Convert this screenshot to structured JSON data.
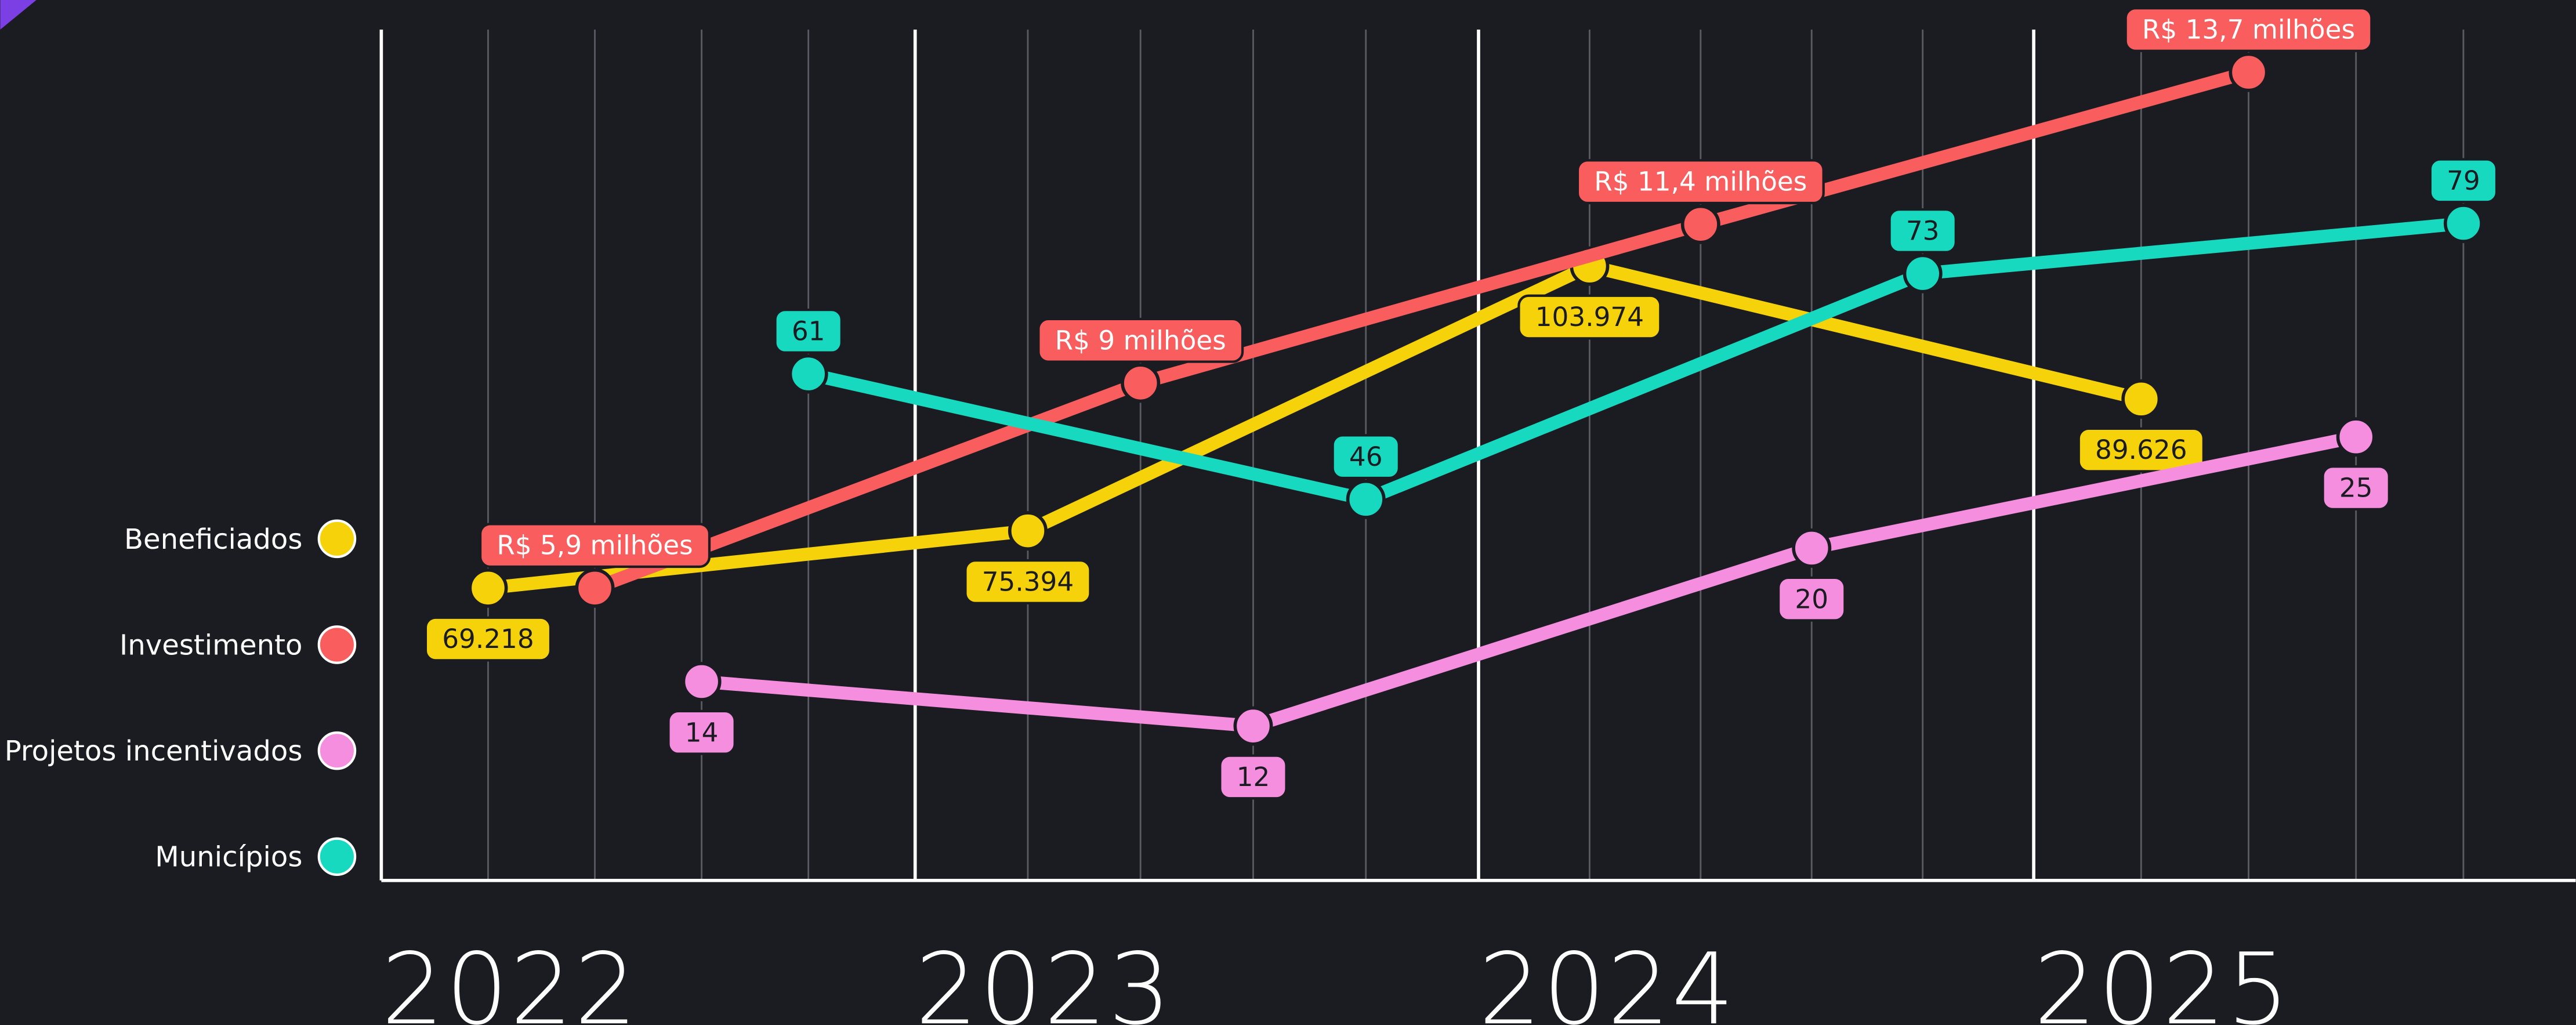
{
  "chart_data": {
    "type": "line",
    "categories": [
      "2022",
      "2023",
      "2024",
      "2025"
    ],
    "series": [
      {
        "name": "Beneficiados",
        "color": "#f5d20a",
        "values": [
          69218,
          75394,
          103974,
          89626
        ],
        "value_labels": [
          "69.218",
          "75.394",
          "103.974",
          "89.626"
        ]
      },
      {
        "name": "Investimento",
        "color": "#f95d5d",
        "values": [
          5.9,
          9,
          11.4,
          13.7
        ],
        "value_labels": [
          "R$ 5,9 milhões",
          "R$ 9 milhões",
          "R$ 11,4 milhões",
          "R$ 13,7 milhões"
        ]
      },
      {
        "name": "Projetos incentivados",
        "color": "#f68ee0",
        "values": [
          14,
          12,
          20,
          25
        ]
      },
      {
        "name": "Municípios",
        "color": "#17d9bf",
        "values": [
          61,
          46,
          73,
          79
        ]
      }
    ],
    "legend": "left"
  }
}
